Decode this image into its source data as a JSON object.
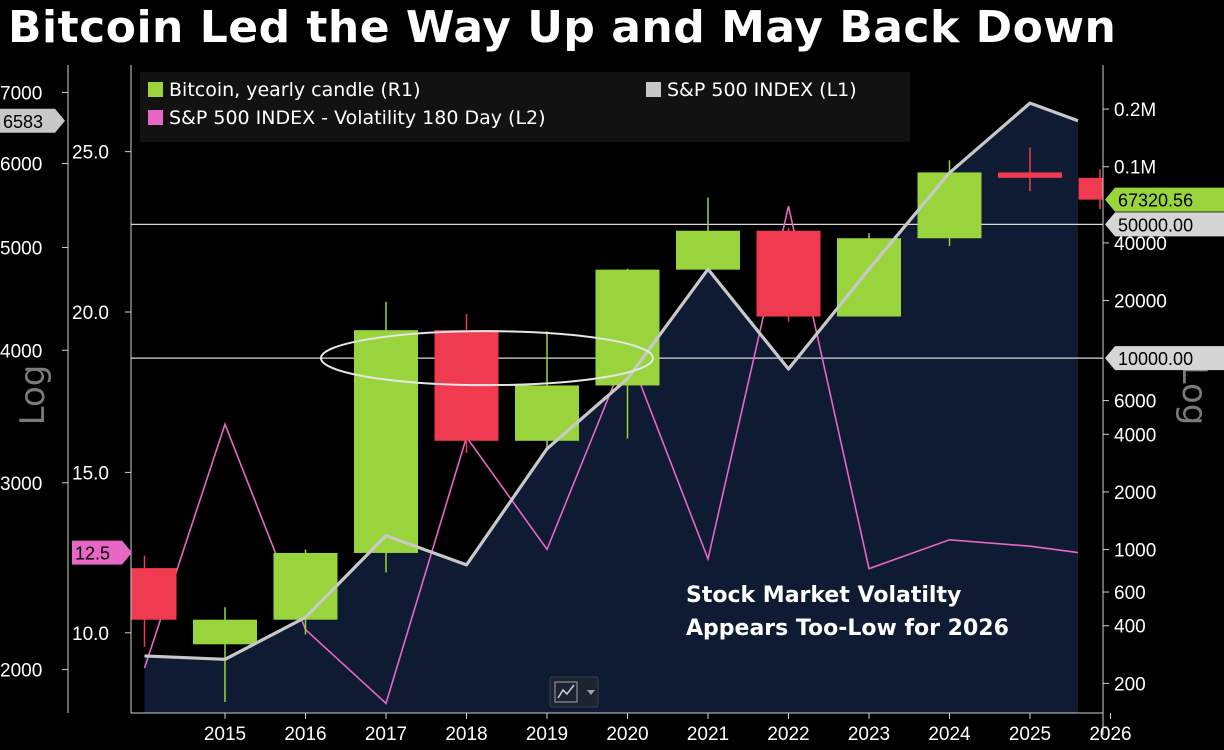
{
  "title": "Bitcoin Led the Way Up and May Back Down",
  "annotation_lines": [
    "Stock Market Volatilty",
    "Appears Too-Low for 2026"
  ],
  "axis_names": {
    "left": "Log",
    "right": "Log"
  },
  "chart_data": {
    "type": "candlestick",
    "x_categories": [
      "2015",
      "2016",
      "2017",
      "2018",
      "2019",
      "2020",
      "2021",
      "2022",
      "2023",
      "2024",
      "2025",
      "2026"
    ],
    "left_outer_axis": {
      "name": "S&P 500 INDEX",
      "scale": "log",
      "ticks": [
        2000,
        3000,
        4000,
        5000,
        6000,
        7000
      ],
      "ylim": [
        1820,
        7430
      ]
    },
    "left_inner_axis": {
      "name": "S&P 500 INDEX - Volatility 180 Day",
      "scale": "linear",
      "ticks": [
        "10.0",
        "15.0",
        "20.0",
        "25.0"
      ],
      "ylim": [
        7.5,
        27.7
      ]
    },
    "right_axis": {
      "name": "Bitcoin",
      "scale": "log",
      "ticks": [
        {
          "value": 200,
          "label": "200"
        },
        {
          "value": 400,
          "label": "400"
        },
        {
          "value": 600,
          "label": "600"
        },
        {
          "value": 1000,
          "label": "1000"
        },
        {
          "value": 2000,
          "label": "2000"
        },
        {
          "value": 4000,
          "label": "4000"
        },
        {
          "value": 6000,
          "label": "6000"
        },
        {
          "value": 20000,
          "label": "20000"
        },
        {
          "value": 40000,
          "label": "40000"
        },
        {
          "value": 100000,
          "label": "0.1M"
        },
        {
          "value": 200000,
          "label": "0.2M"
        }
      ],
      "ylim": [
        140,
        340000
      ]
    },
    "series": [
      {
        "name": "Bitcoin, yearly candle (R1)",
        "color": "#9ad43d",
        "down_color": "#f03a4f",
        "candles": [
          {
            "x": "2014",
            "open": 800,
            "close": 430,
            "high": 930,
            "low": 310
          },
          {
            "x": "2015",
            "open": 320,
            "close": 430,
            "high": 500,
            "low": 160
          },
          {
            "x": "2016",
            "open": 430,
            "close": 960,
            "high": 1000,
            "low": 360
          },
          {
            "x": "2017",
            "open": 960,
            "close": 14000,
            "high": 19700,
            "low": 760
          },
          {
            "x": "2018",
            "open": 14000,
            "close": 3700,
            "high": 17000,
            "low": 3200
          },
          {
            "x": "2019",
            "open": 3700,
            "close": 7200,
            "high": 13800,
            "low": 3400
          },
          {
            "x": "2020",
            "open": 7200,
            "close": 29000,
            "high": 29300,
            "low": 3800
          },
          {
            "x": "2021",
            "open": 29000,
            "close": 46300,
            "high": 69000,
            "low": 28800
          },
          {
            "x": "2022",
            "open": 46300,
            "close": 16500,
            "high": 48000,
            "low": 15500
          },
          {
            "x": "2023",
            "open": 16500,
            "close": 42300,
            "high": 45000,
            "low": 16500
          },
          {
            "x": "2024",
            "open": 42300,
            "close": 93400,
            "high": 108000,
            "low": 38500
          },
          {
            "x": "2025",
            "open": 93400,
            "close": 87500,
            "high": 126000,
            "low": 74500
          },
          {
            "x": "2026",
            "open": 87500,
            "close": 67320.56,
            "high": 97000,
            "low": 60000
          }
        ]
      },
      {
        "name": "S&P 500 INDEX  (L1)",
        "color": "#c8c8c8",
        "fill": "#0f1a33",
        "points": [
          {
            "x": "2014",
            "y": 2060
          },
          {
            "x": "2015",
            "y": 2045
          },
          {
            "x": "2016",
            "y": 2240
          },
          {
            "x": "2017",
            "y": 2675
          },
          {
            "x": "2018",
            "y": 2510
          },
          {
            "x": "2019",
            "y": 3230
          },
          {
            "x": "2020",
            "y": 3760
          },
          {
            "x": "2021",
            "y": 4770
          },
          {
            "x": "2022",
            "y": 3840
          },
          {
            "x": "2023",
            "y": 4770
          },
          {
            "x": "2024",
            "y": 5880
          },
          {
            "x": "2025",
            "y": 6840
          },
          {
            "x": "2026",
            "y": 6583
          }
        ]
      },
      {
        "name": "S&P 500 INDEX - Volatility 180 Day (L2)",
        "color": "#e667c4",
        "points": [
          {
            "x": "2014",
            "y": 8.9
          },
          {
            "x": "2015",
            "y": 16.5
          },
          {
            "x": "2016",
            "y": 10.1
          },
          {
            "x": "2017",
            "y": 7.8
          },
          {
            "x": "2018",
            "y": 16.1
          },
          {
            "x": "2019",
            "y": 12.6
          },
          {
            "x": "2020",
            "y": 18.8
          },
          {
            "x": "2021",
            "y": 12.3
          },
          {
            "x": "2022",
            "y": 23.3
          },
          {
            "x": "2023",
            "y": 12.0
          },
          {
            "x": "2024",
            "y": 12.9
          },
          {
            "x": "2025",
            "y": 12.7
          },
          {
            "x": "2026",
            "y": 12.5
          }
        ]
      }
    ],
    "reference_lines": [
      {
        "axis": "right",
        "value": 50000,
        "label": "50000.00"
      },
      {
        "axis": "right",
        "value": 10000,
        "label": "10000.00"
      }
    ],
    "last_value_badges": {
      "sp500": "6583",
      "volatility": "12.5",
      "bitcoin": "67320.56"
    },
    "legend": {
      "placement": "top",
      "entries": [
        "Bitcoin, yearly candle (R1)",
        "S&P 500 INDEX  (L1)",
        "S&P 500 INDEX - Volatility 180 Day (L2)"
      ]
    },
    "highlight": {
      "shape": "ellipse",
      "around": "2017-2020 near 10000"
    },
    "grid": false,
    "colors": {
      "background": "#000000",
      "up": "#9ad43d",
      "down": "#f03a4f",
      "sp500": "#c8c8c8",
      "volatility": "#e667c4",
      "area": "#0f1a33"
    }
  }
}
